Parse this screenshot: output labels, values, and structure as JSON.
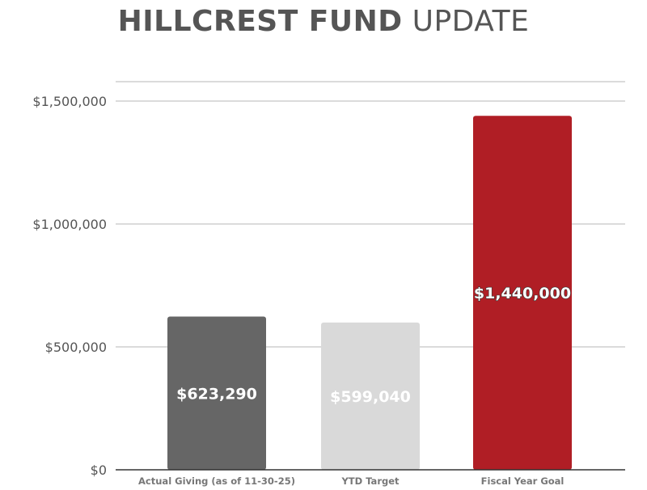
{
  "title": {
    "bold": "HILLCREST FUND",
    "light": "UPDATE"
  },
  "chart_data": {
    "type": "bar",
    "categories": [
      "Actual Giving (as of 11-30-25)",
      "YTD Target",
      "Fiscal Year Goal"
    ],
    "values": [
      623290,
      599040,
      1440000
    ],
    "data_labels": [
      "$623,290",
      "$599,040",
      "$1,440,000"
    ],
    "bar_colors": [
      "#666666",
      "#d9d9d9",
      "#b01e25"
    ],
    "ylim": [
      0,
      1500000
    ],
    "yticks": [
      0,
      500000,
      1000000,
      1500000
    ],
    "ytick_labels": [
      "$0",
      "$500,000",
      "$1,000,000",
      "$1,500,000"
    ],
    "grid": true,
    "xlabel": "",
    "ylabel": ""
  }
}
